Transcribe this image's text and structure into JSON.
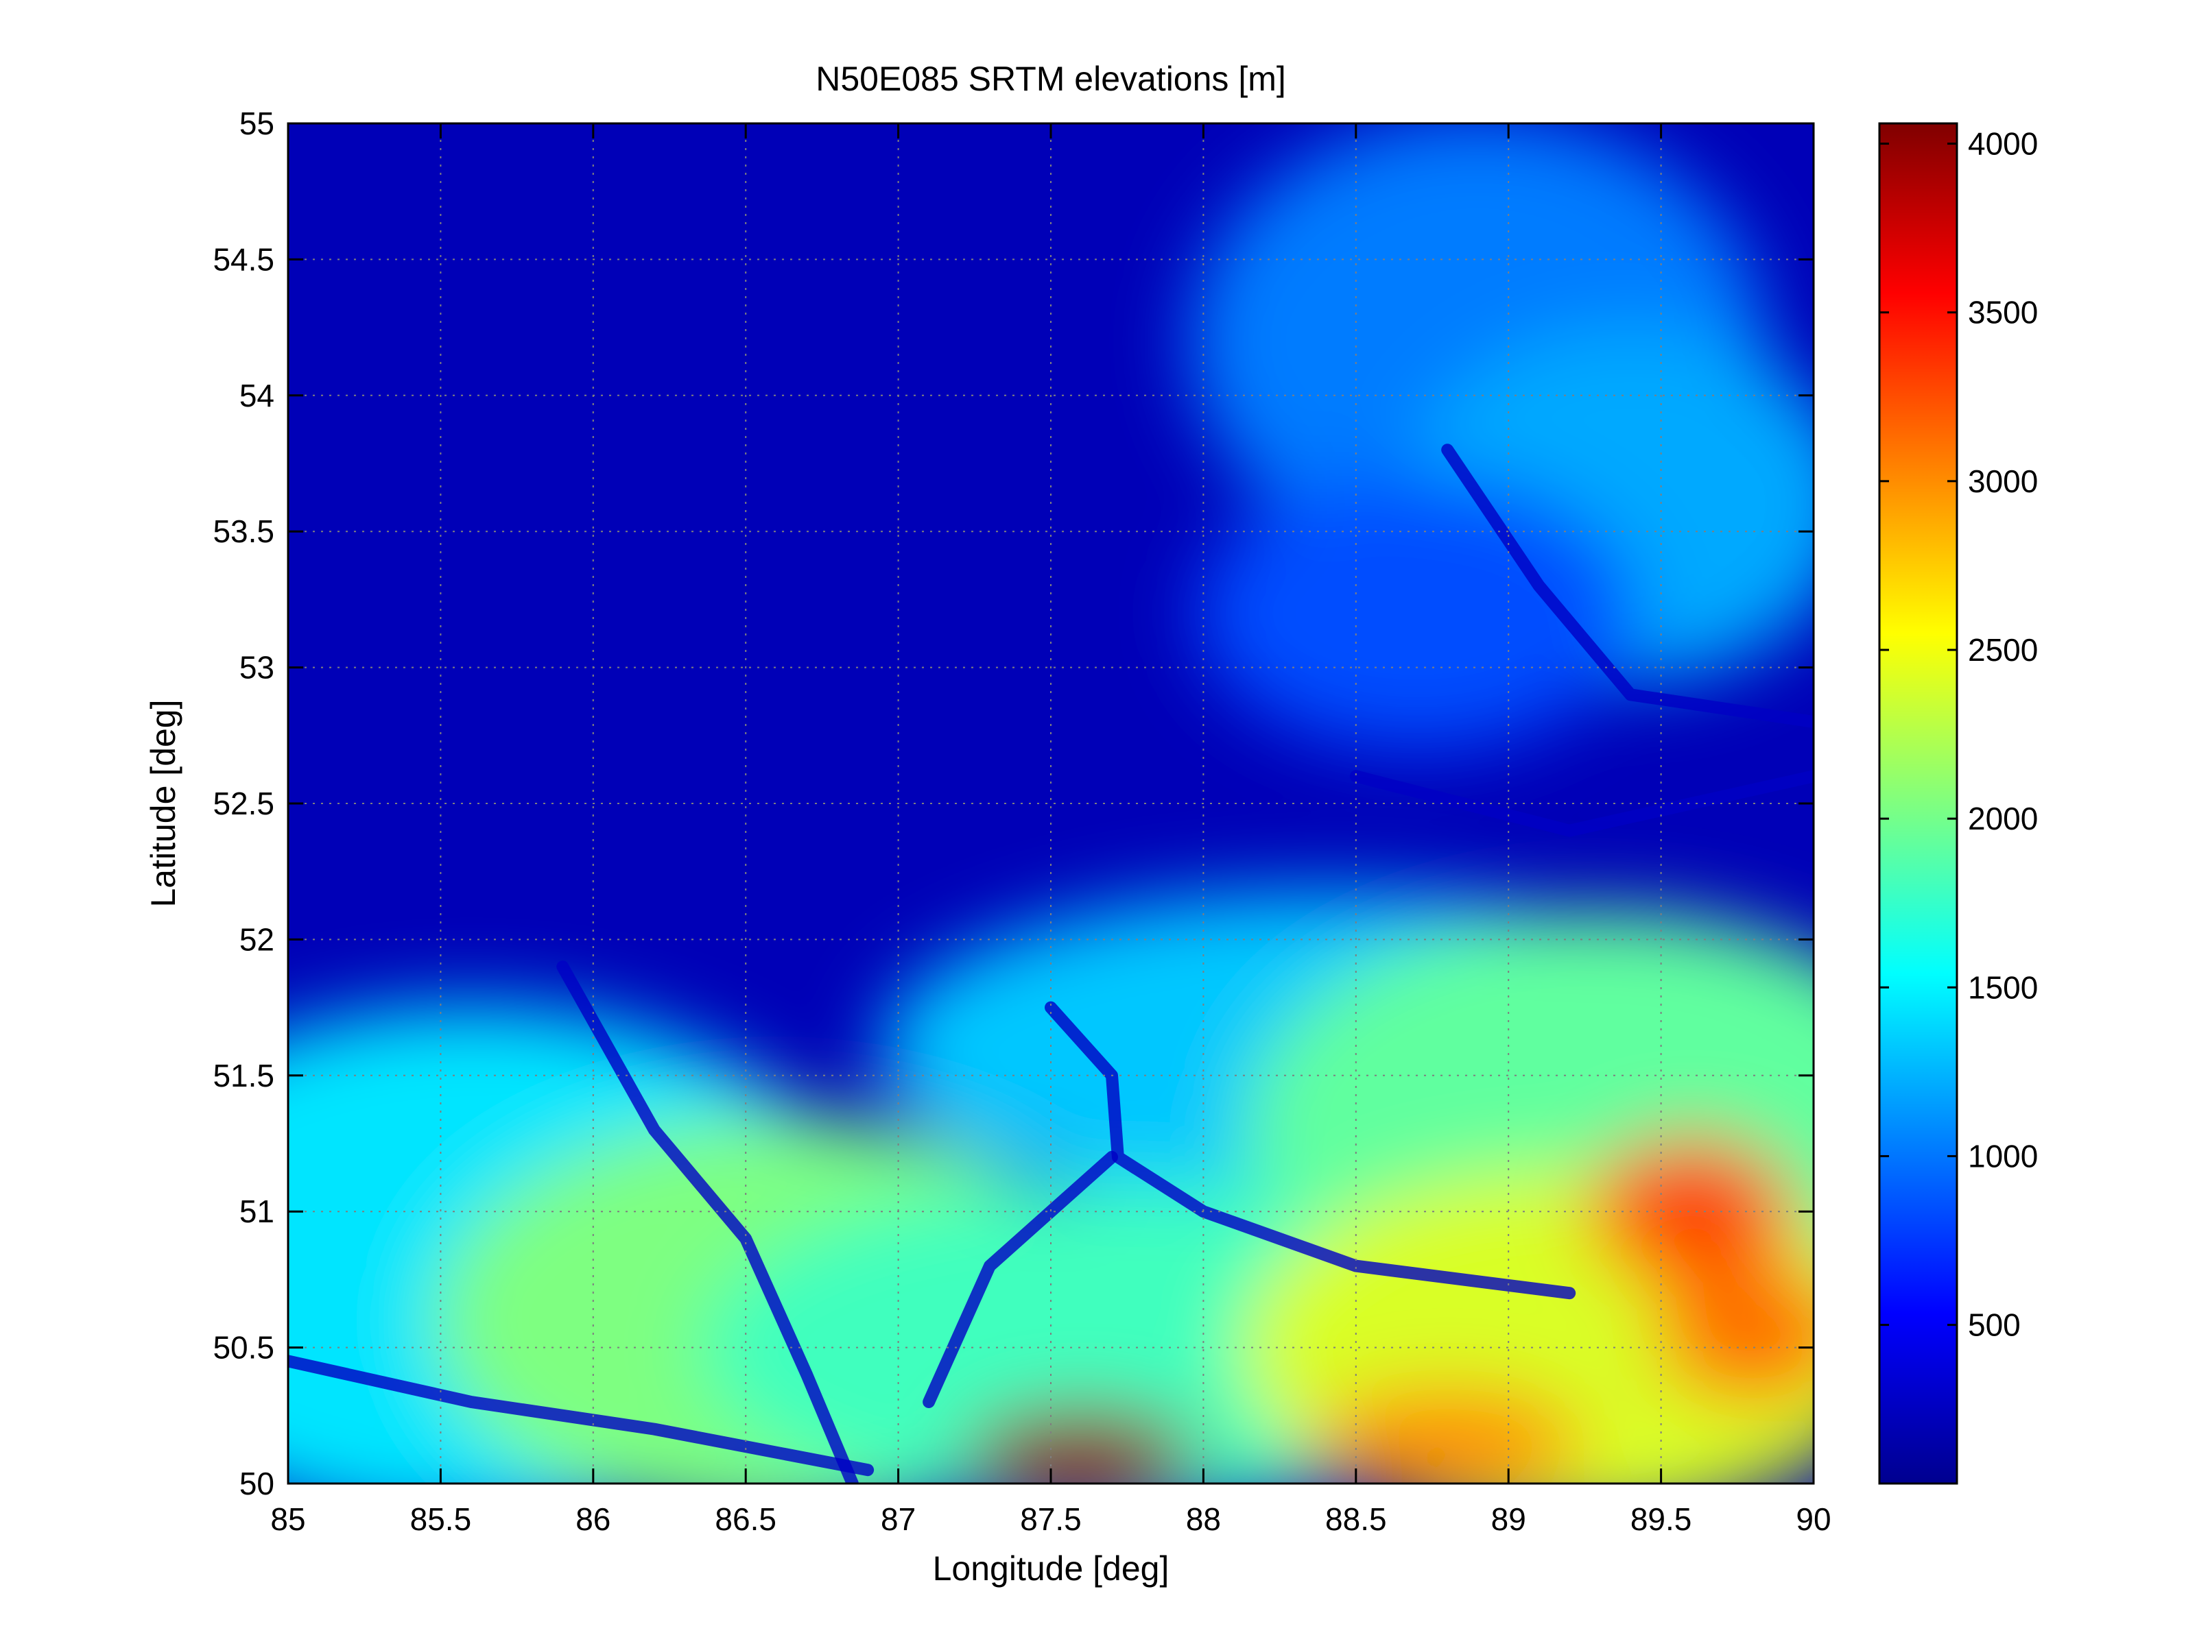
{
  "chart_data": {
    "type": "heatmap",
    "title": "N50E085 SRTM elevations [m]",
    "xlabel": "Longitude [deg]",
    "ylabel": "Latitude [deg]",
    "xlim": [
      85,
      90
    ],
    "ylim": [
      50,
      55
    ],
    "grid": true,
    "colormap": "jet",
    "colorbar": {
      "position": "right",
      "range": [
        30,
        4060
      ],
      "ticks": [
        500,
        1000,
        1500,
        2000,
        2500,
        3000,
        3500,
        4000
      ],
      "tick_labels": [
        "500",
        "1000",
        "1500",
        "2000",
        "2500",
        "3000",
        "3500",
        "4000"
      ]
    },
    "x_ticks": [
      85,
      85.5,
      86,
      86.5,
      87,
      87.5,
      88,
      88.5,
      89,
      89.5,
      90
    ],
    "x_tick_labels": [
      "85",
      "85.5",
      "86",
      "86.5",
      "87",
      "87.5",
      "88",
      "88.5",
      "89",
      "89.5",
      "90"
    ],
    "y_ticks": [
      50,
      50.5,
      51,
      51.5,
      52,
      52.5,
      53,
      53.5,
      54,
      54.5,
      55
    ],
    "y_tick_labels": [
      "50",
      "50.5",
      "51",
      "51.5",
      "52",
      "52.5",
      "53",
      "53.5",
      "54",
      "54.5",
      "55"
    ],
    "features": {
      "lowland_elevation": 250,
      "north_east_hills_elevation": 1200,
      "south_mountain_elevation": 2400,
      "peak_elevation": 4000,
      "river_elevation": 300
    }
  },
  "colors": {
    "jet_low": "#00008f",
    "jet_mid": "#80ff80",
    "jet_high": "#800000"
  }
}
